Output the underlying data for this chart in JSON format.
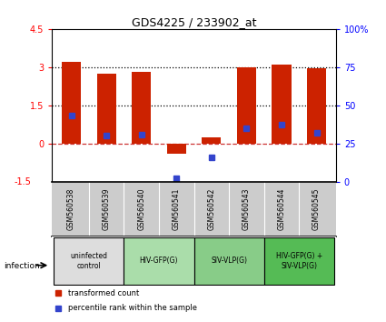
{
  "title": "GDS4225 / 233902_at",
  "samples": [
    "GSM560538",
    "GSM560539",
    "GSM560540",
    "GSM560541",
    "GSM560542",
    "GSM560543",
    "GSM560544",
    "GSM560545"
  ],
  "red_values": [
    3.2,
    2.75,
    2.8,
    -0.4,
    0.25,
    3.0,
    3.1,
    2.95
  ],
  "blue_values": [
    1.1,
    0.3,
    0.35,
    -1.35,
    -0.55,
    0.62,
    0.75,
    0.42
  ],
  "ylim": [
    -1.5,
    4.5
  ],
  "yticks": [
    0.0,
    1.5,
    3.0,
    4.5
  ],
  "ytick_labels": [
    "0",
    "1.5",
    "3",
    "4.5"
  ],
  "y2lim": [
    0,
    100
  ],
  "y2ticks": [
    0,
    25,
    50,
    75,
    100
  ],
  "y2tick_labels": [
    "0",
    "25",
    "50",
    "75",
    "100%"
  ],
  "hlines": [
    1.5,
    3.0
  ],
  "hline_zero_color": "#cc3333",
  "hline_dotted_color": "#000000",
  "red_color": "#cc2200",
  "blue_color": "#3344cc",
  "plot_bg": "#ffffff",
  "axes_bg": "#ffffff",
  "sample_label_bg": "#cccccc",
  "groups": [
    {
      "label": "uninfected\ncontrol",
      "start": 0,
      "end": 2,
      "color": "#dddddd"
    },
    {
      "label": "HIV-GFP(G)",
      "start": 2,
      "end": 4,
      "color": "#aaddaa"
    },
    {
      "label": "SIV-VLP(G)",
      "start": 4,
      "end": 6,
      "color": "#88cc88"
    },
    {
      "label": "HIV-GFP(G) +\nSIV-VLP(G)",
      "start": 6,
      "end": 8,
      "color": "#55bb55"
    }
  ],
  "infection_label": "infection",
  "legend_red": "transformed count",
  "legend_blue": "percentile rank within the sample"
}
